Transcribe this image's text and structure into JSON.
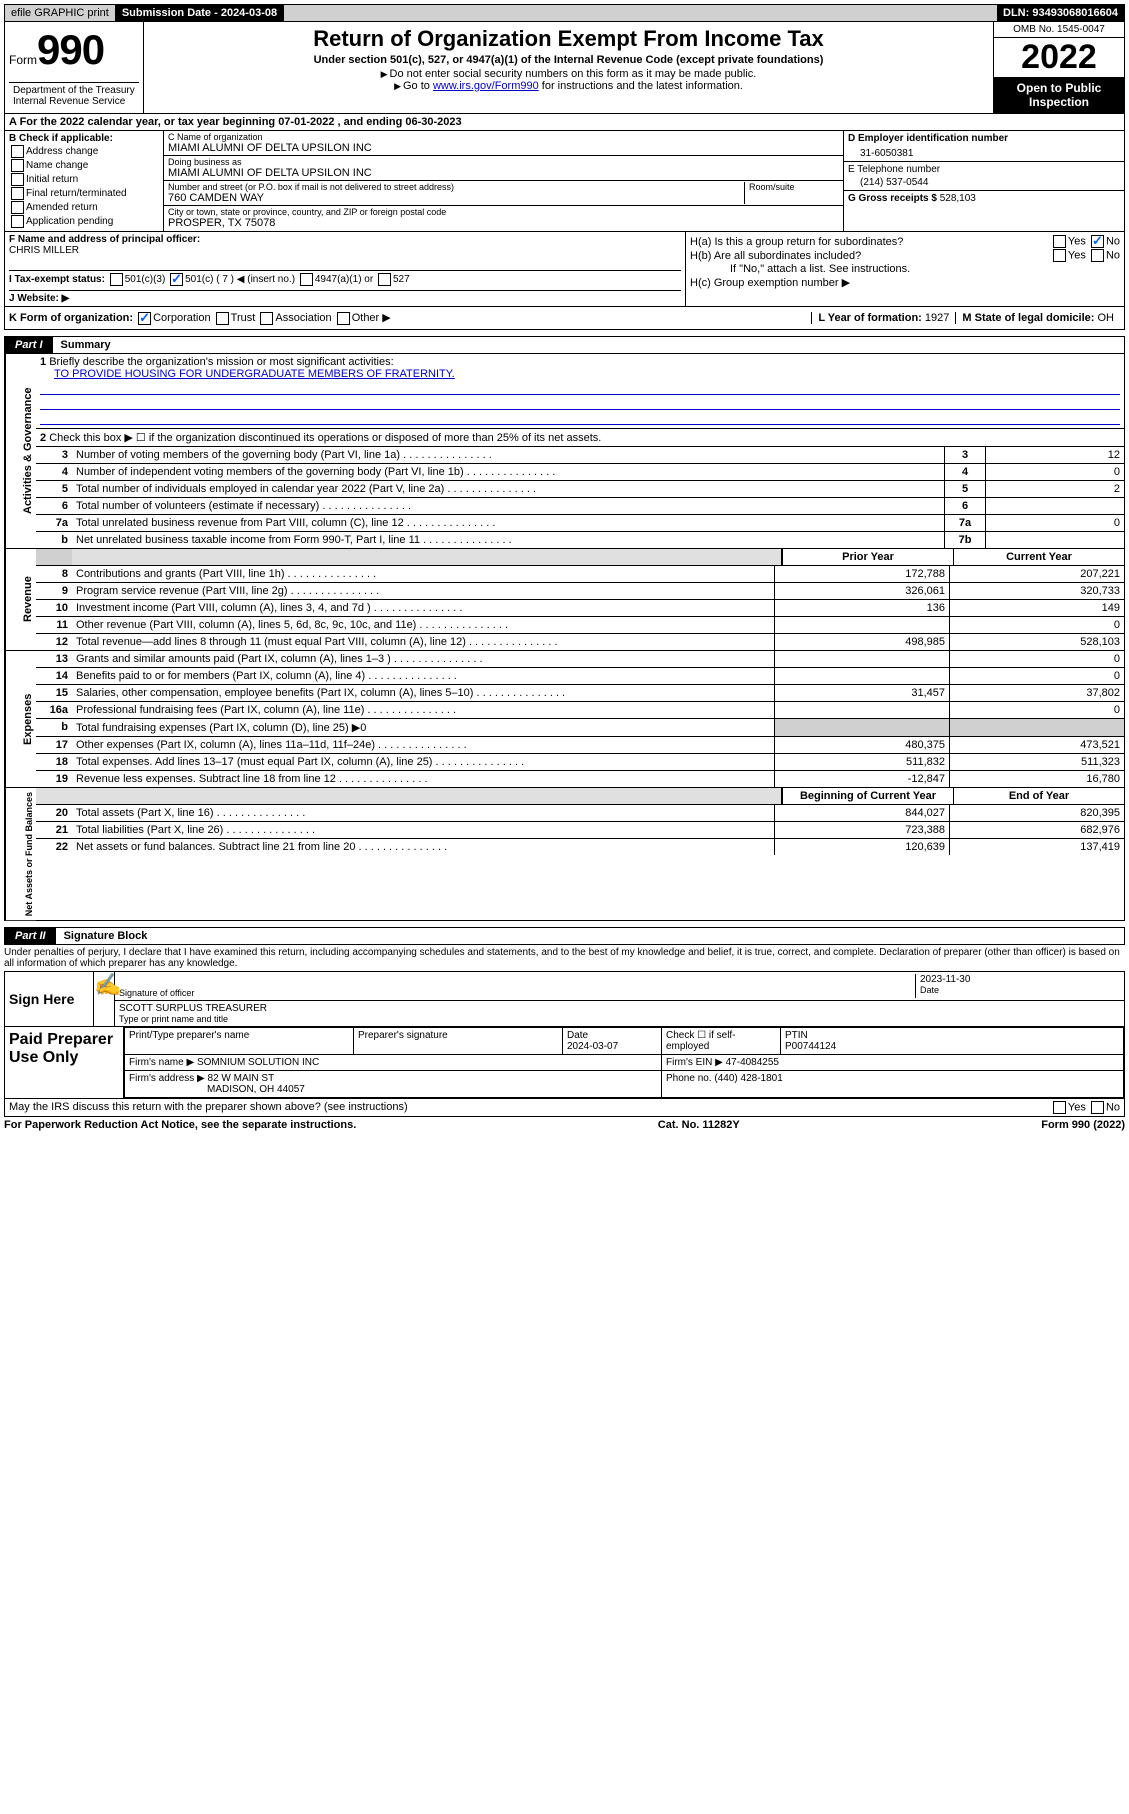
{
  "topbar": {
    "efile": "efile GRAPHIC print",
    "submission_label": "Submission Date - 2024-03-08",
    "dln": "DLN: 93493068016604"
  },
  "header": {
    "form_prefix": "Form",
    "form_number": "990",
    "title": "Return of Organization Exempt From Income Tax",
    "subtitle": "Under section 501(c), 527, or 4947(a)(1) of the Internal Revenue Code (except private foundations)",
    "guide1": "Do not enter social security numbers on this form as it may be made public.",
    "guide2_pre": "Go to ",
    "guide2_link": "www.irs.gov/Form990",
    "guide2_post": " for instructions and the latest information.",
    "dept": "Department of the Treasury\nInternal Revenue Service",
    "omb": "OMB No. 1545-0047",
    "year": "2022",
    "open_public": "Open to Public Inspection"
  },
  "line_a": "A For the 2022 calendar year, or tax year beginning 07-01-2022  , and ending 06-30-2023",
  "section_b": {
    "label": "B Check if applicable:",
    "items": [
      "Address change",
      "Name change",
      "Initial return",
      "Final return/terminated",
      "Amended return",
      "Application pending"
    ]
  },
  "section_c": {
    "name_label": "C Name of organization",
    "name": "MIAMI ALUMNI OF DELTA UPSILON INC",
    "dba_label": "Doing business as",
    "dba": "MIAMI ALUMNI OF DELTA UPSILON INC",
    "addr_label": "Number and street (or P.O. box if mail is not delivered to street address)",
    "room_label": "Room/suite",
    "addr": "760 CAMDEN WAY",
    "city_label": "City or town, state or province, country, and ZIP or foreign postal code",
    "city": "PROSPER, TX  75078"
  },
  "section_d": {
    "ein_label": "D Employer identification number",
    "ein": "31-6050381",
    "phone_label": "E Telephone number",
    "phone": "(214) 537-0544",
    "gross_label": "G Gross receipts $",
    "gross": "528,103"
  },
  "section_f": {
    "label": "F Name and address of principal officer:",
    "name": "CHRIS MILLER"
  },
  "section_h": {
    "ha_label": "H(a)  Is this a group return for subordinates?",
    "hb_label": "H(b)  Are all subordinates included?",
    "hb_note": "If \"No,\" attach a list. See instructions.",
    "hc_label": "H(c)  Group exemption number ▶",
    "yes": "Yes",
    "no": "No"
  },
  "row_i": {
    "label": "I  Tax-exempt status:",
    "opts": [
      "501(c)(3)",
      "501(c) ( 7 ) ◀ (insert no.)",
      "4947(a)(1) or",
      "527"
    ]
  },
  "row_j": {
    "label": "J  Website: ▶"
  },
  "row_k": {
    "label": "K Form of organization:",
    "opts": [
      "Corporation",
      "Trust",
      "Association",
      "Other ▶"
    ],
    "year_label": "L Year of formation:",
    "year": "1927",
    "state_label": "M State of legal domicile:",
    "state": "OH"
  },
  "part1": {
    "label": "Part I",
    "title": "Summary",
    "side_labels": [
      "Activities & Governance",
      "Revenue",
      "Expenses",
      "Net Assets or Fund Balances"
    ],
    "q1_label": "Briefly describe the organization's mission or most significant activities:",
    "q1_val": "TO PROVIDE HOUSING FOR UNDERGRADUATE MEMBERS OF FRATERNITY.",
    "q2": "Check this box ▶ ☐  if the organization discontinued its operations or disposed of more than 25% of its net assets.",
    "rows_gov": [
      {
        "n": "3",
        "t": "Number of voting members of the governing body (Part VI, line 1a)",
        "box": "3",
        "v": "12"
      },
      {
        "n": "4",
        "t": "Number of independent voting members of the governing body (Part VI, line 1b)",
        "box": "4",
        "v": "0"
      },
      {
        "n": "5",
        "t": "Total number of individuals employed in calendar year 2022 (Part V, line 2a)",
        "box": "5",
        "v": "2"
      },
      {
        "n": "6",
        "t": "Total number of volunteers (estimate if necessary)",
        "box": "6",
        "v": ""
      },
      {
        "n": "7a",
        "t": "Total unrelated business revenue from Part VIII, column (C), line 12",
        "box": "7a",
        "v": "0"
      },
      {
        "n": "b",
        "t": "Net unrelated business taxable income from Form 990-T, Part I, line 11",
        "box": "7b",
        "v": ""
      }
    ],
    "col_headers": {
      "prior": "Prior Year",
      "current": "Current Year",
      "begin": "Beginning of Current Year",
      "end": "End of Year"
    },
    "rows_rev": [
      {
        "n": "8",
        "t": "Contributions and grants (Part VIII, line 1h)",
        "p": "172,788",
        "c": "207,221"
      },
      {
        "n": "9",
        "t": "Program service revenue (Part VIII, line 2g)",
        "p": "326,061",
        "c": "320,733"
      },
      {
        "n": "10",
        "t": "Investment income (Part VIII, column (A), lines 3, 4, and 7d )",
        "p": "136",
        "c": "149"
      },
      {
        "n": "11",
        "t": "Other revenue (Part VIII, column (A), lines 5, 6d, 8c, 9c, 10c, and 11e)",
        "p": "",
        "c": "0"
      },
      {
        "n": "12",
        "t": "Total revenue—add lines 8 through 11 (must equal Part VIII, column (A), line 12)",
        "p": "498,985",
        "c": "528,103"
      }
    ],
    "rows_exp": [
      {
        "n": "13",
        "t": "Grants and similar amounts paid (Part IX, column (A), lines 1–3 )",
        "p": "",
        "c": "0"
      },
      {
        "n": "14",
        "t": "Benefits paid to or for members (Part IX, column (A), line 4)",
        "p": "",
        "c": "0"
      },
      {
        "n": "15",
        "t": "Salaries, other compensation, employee benefits (Part IX, column (A), lines 5–10)",
        "p": "31,457",
        "c": "37,802"
      },
      {
        "n": "16a",
        "t": "Professional fundraising fees (Part IX, column (A), line 11e)",
        "p": "",
        "c": "0"
      },
      {
        "n": "b",
        "t": "Total fundraising expenses (Part IX, column (D), line 25) ▶0",
        "p": null,
        "c": null
      },
      {
        "n": "17",
        "t": "Other expenses (Part IX, column (A), lines 11a–11d, 11f–24e)",
        "p": "480,375",
        "c": "473,521"
      },
      {
        "n": "18",
        "t": "Total expenses. Add lines 13–17 (must equal Part IX, column (A), line 25)",
        "p": "511,832",
        "c": "511,323"
      },
      {
        "n": "19",
        "t": "Revenue less expenses. Subtract line 18 from line 12",
        "p": "-12,847",
        "c": "16,780"
      }
    ],
    "rows_net": [
      {
        "n": "20",
        "t": "Total assets (Part X, line 16)",
        "p": "844,027",
        "c": "820,395"
      },
      {
        "n": "21",
        "t": "Total liabilities (Part X, line 26)",
        "p": "723,388",
        "c": "682,976"
      },
      {
        "n": "22",
        "t": "Net assets or fund balances. Subtract line 21 from line 20",
        "p": "120,639",
        "c": "137,419"
      }
    ]
  },
  "part2": {
    "label": "Part II",
    "title": "Signature Block",
    "declaration": "Under penalties of perjury, I declare that I have examined this return, including accompanying schedules and statements, and to the best of my knowledge and belief, it is true, correct, and complete. Declaration of preparer (other than officer) is based on all information of which preparer has any knowledge.",
    "sign_here": "Sign Here",
    "sig_of_officer": "Signature of officer",
    "sig_date": "2023-11-30",
    "date_label": "Date",
    "officer_name": "SCOTT SURPLUS TREASURER",
    "officer_label": "Type or print name and title",
    "paid_prep": "Paid Preparer Use Only",
    "prep_headers": [
      "Print/Type preparer's name",
      "Preparer's signature",
      "Date",
      "Check ☐ if self-employed",
      "PTIN"
    ],
    "prep_date": "2024-03-07",
    "ptin": "P00744124",
    "firm_name_label": "Firm's name  ▶",
    "firm_name": "SOMNIUM SOLUTION INC",
    "firm_ein_label": "Firm's EIN ▶",
    "firm_ein": "47-4084255",
    "firm_addr_label": "Firm's address ▶",
    "firm_addr": "82 W MAIN ST",
    "firm_city": "MADISON, OH  44057",
    "phone_label": "Phone no.",
    "phone": "(440) 428-1801",
    "discuss": "May the IRS discuss this return with the preparer shown above? (see instructions)"
  },
  "footer": {
    "left": "For Paperwork Reduction Act Notice, see the separate instructions.",
    "mid": "Cat. No. 11282Y",
    "right": "Form 990 (2022)"
  },
  "colors": {
    "link": "#0000cc",
    "check": "#0060ff",
    "gray": "#d0d0d0"
  }
}
